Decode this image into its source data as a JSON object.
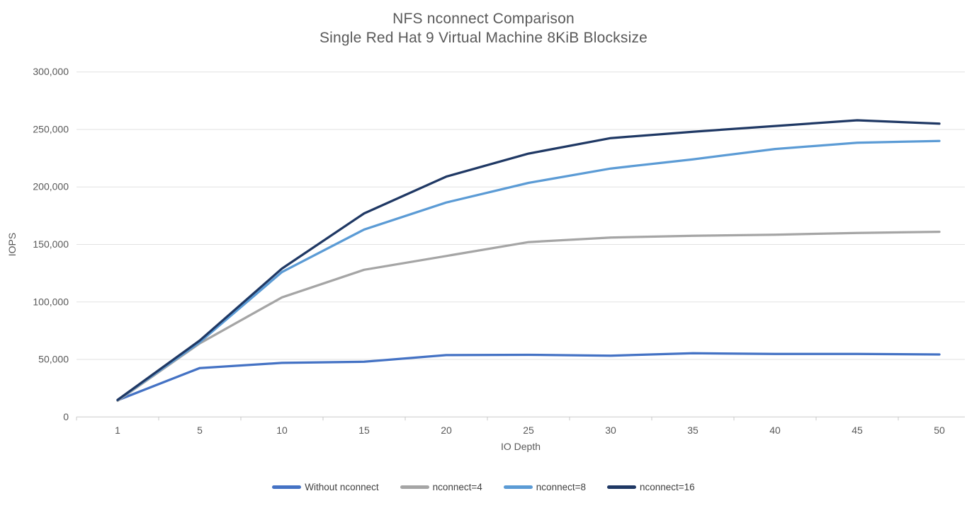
{
  "chart_data": {
    "type": "line",
    "title": "NFS nconnect Comparison",
    "subtitle": "Single Red Hat 9 Virtual Machine 8KiB Blocksize",
    "xlabel": "IO Depth",
    "ylabel": "IOPS",
    "categories": [
      1,
      5,
      10,
      15,
      20,
      25,
      30,
      35,
      40,
      45,
      50
    ],
    "y_ticks": [
      "0",
      "50,000",
      "100,000",
      "150,000",
      "200,000",
      "250,000",
      "300,000"
    ],
    "y_tick_values": [
      0,
      50000,
      100000,
      150000,
      200000,
      250000,
      300000
    ],
    "ylim": [
      0,
      300000
    ],
    "grid": "horizontal",
    "legend_position": "bottom",
    "series": [
      {
        "name": "Without nconnect",
        "color": "#4472C4",
        "values": [
          14500,
          42500,
          47000,
          48000,
          53800,
          54000,
          53300,
          55400,
          54800,
          54800,
          54300
        ]
      },
      {
        "name": "nconnect=4",
        "color": "#A5A5A5",
        "values": [
          14000,
          64000,
          104000,
          128000,
          140000,
          152000,
          156000,
          157500,
          158500,
          160000,
          161000
        ]
      },
      {
        "name": "nconnect=8",
        "color": "#5B9BD5",
        "values": [
          14700,
          65000,
          126000,
          163000,
          186500,
          203500,
          216000,
          224000,
          233000,
          238500,
          240000
        ]
      },
      {
        "name": "nconnect=16",
        "color": "#1F3864",
        "values": [
          14800,
          66500,
          129000,
          177000,
          209000,
          229000,
          242500,
          248000,
          253000,
          258000,
          255000
        ]
      }
    ]
  },
  "colors": {
    "title_text": "#595959",
    "axis_text": "#595959",
    "legend_text": "#404040",
    "gridline": "#E2E2E2",
    "axis_line": "#C9C9C9"
  }
}
